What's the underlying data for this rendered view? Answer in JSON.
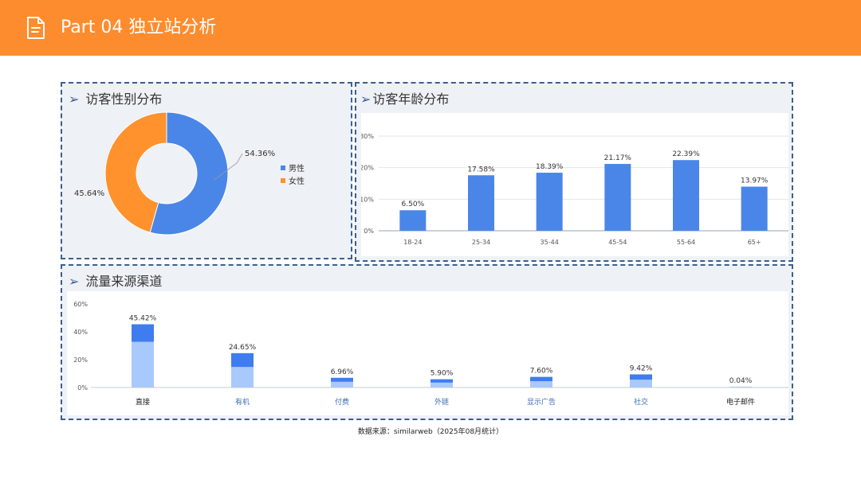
{
  "header": {
    "title": "Part 04 独立站分析",
    "icon": "document-icon",
    "color": "#fd8c2e"
  },
  "panels": {
    "gender": {
      "title": "访客性别分布"
    },
    "age": {
      "title": "访客年龄分布"
    },
    "traffic": {
      "title": "流量来源渠道"
    }
  },
  "arrow": "➢",
  "source": "数据来源：similarweb（2025年08月统计）",
  "chart_data": [
    {
      "type": "pie",
      "style": "donut",
      "labels": [
        "男性",
        "女性"
      ],
      "values": [
        54.36,
        45.64
      ],
      "value_labels": [
        "54.36%",
        "45.64%"
      ],
      "colors": [
        "#4a86e8",
        "#ff922d"
      ],
      "legend_position": "right"
    },
    {
      "type": "bar",
      "categories": [
        "18-24",
        "25-34",
        "35-44",
        "45-54",
        "55-64",
        "65+"
      ],
      "values": [
        6.5,
        17.58,
        18.39,
        21.17,
        22.39,
        13.97
      ],
      "value_labels": [
        "6.50%",
        "17.58%",
        "18.39%",
        "21.17%",
        "22.39%",
        "13.97%"
      ],
      "yticks": [
        "0%",
        "10%",
        "20%",
        "30%"
      ],
      "ylim": [
        0,
        30
      ],
      "color": "#4a86e8",
      "grid": true
    },
    {
      "type": "bar",
      "stacked": true,
      "categories": [
        "直接",
        "有机",
        "付费",
        "外链",
        "显示广告",
        "社交",
        "电子邮件"
      ],
      "values": [
        45.42,
        24.65,
        6.96,
        5.9,
        7.6,
        9.42,
        0.04
      ],
      "value_labels": [
        "45.42%",
        "24.65%",
        "6.96%",
        "5.90%",
        "7.60%",
        "9.42%",
        "0.04%"
      ],
      "yticks": [
        "0%",
        "20%",
        "40%",
        "60%"
      ],
      "ylim": [
        0,
        60
      ],
      "colors": {
        "dark": "#3f7cf0",
        "light": "#a9c8fb"
      },
      "label_colors": {
        "dark": "#222222",
        "link": "#3c6cb4"
      }
    }
  ]
}
